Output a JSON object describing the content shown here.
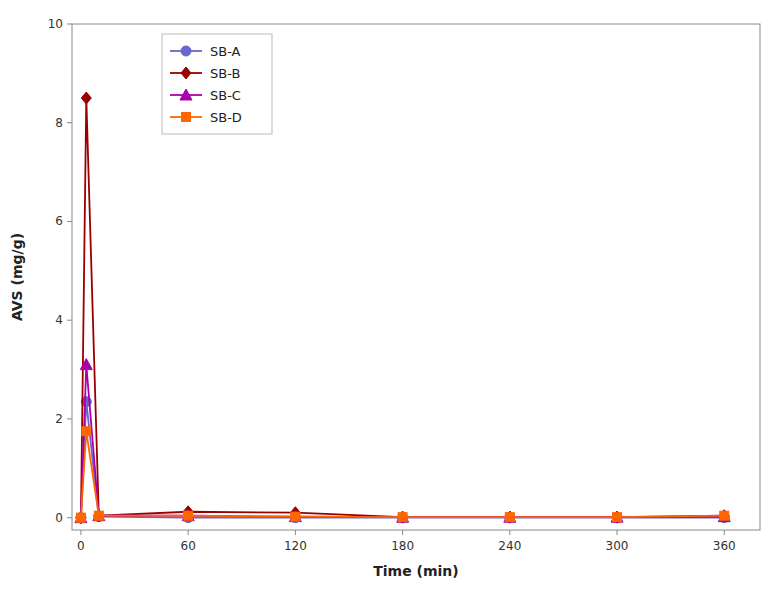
{
  "chart_data": {
    "type": "line",
    "xlabel": "Time (min)",
    "ylabel": "AVS (mg/g)",
    "x": [
      0,
      3,
      10,
      60,
      120,
      180,
      240,
      300,
      360
    ],
    "series": [
      {
        "name": "SB-A",
        "color": "#6666CC",
        "marker": "circle",
        "line_style": "solid",
        "values": [
          0,
          2.35,
          0.02,
          0.0,
          0.0,
          0.0,
          0.0,
          0.0,
          0.0
        ]
      },
      {
        "name": "SB-B",
        "color": "#990000",
        "marker": "diamond",
        "line_style": "solid",
        "values": [
          0,
          8.5,
          0.04,
          0.12,
          0.1,
          0.01,
          0.01,
          0.01,
          0.04
        ]
      },
      {
        "name": "SB-C",
        "color": "#AA00AA",
        "marker": "triangle",
        "line_style": "solid",
        "values": [
          0,
          3.1,
          0.04,
          0.04,
          0.02,
          0.01,
          0.01,
          0.01,
          0.02
        ]
      },
      {
        "name": "SB-D",
        "color": "#FF6600",
        "marker": "square",
        "line_style": "solid",
        "values": [
          0,
          1.75,
          0.04,
          0.04,
          0.02,
          0.01,
          0.01,
          0.01,
          0.04
        ]
      }
    ],
    "xlim": [
      -5,
      380
    ],
    "ylim": [
      -0.25,
      10
    ],
    "xticks": [
      0,
      60,
      120,
      180,
      240,
      300,
      360
    ],
    "yticks": [
      0,
      2,
      4,
      6,
      8,
      10
    ],
    "grid": false,
    "legend": "upper left"
  }
}
